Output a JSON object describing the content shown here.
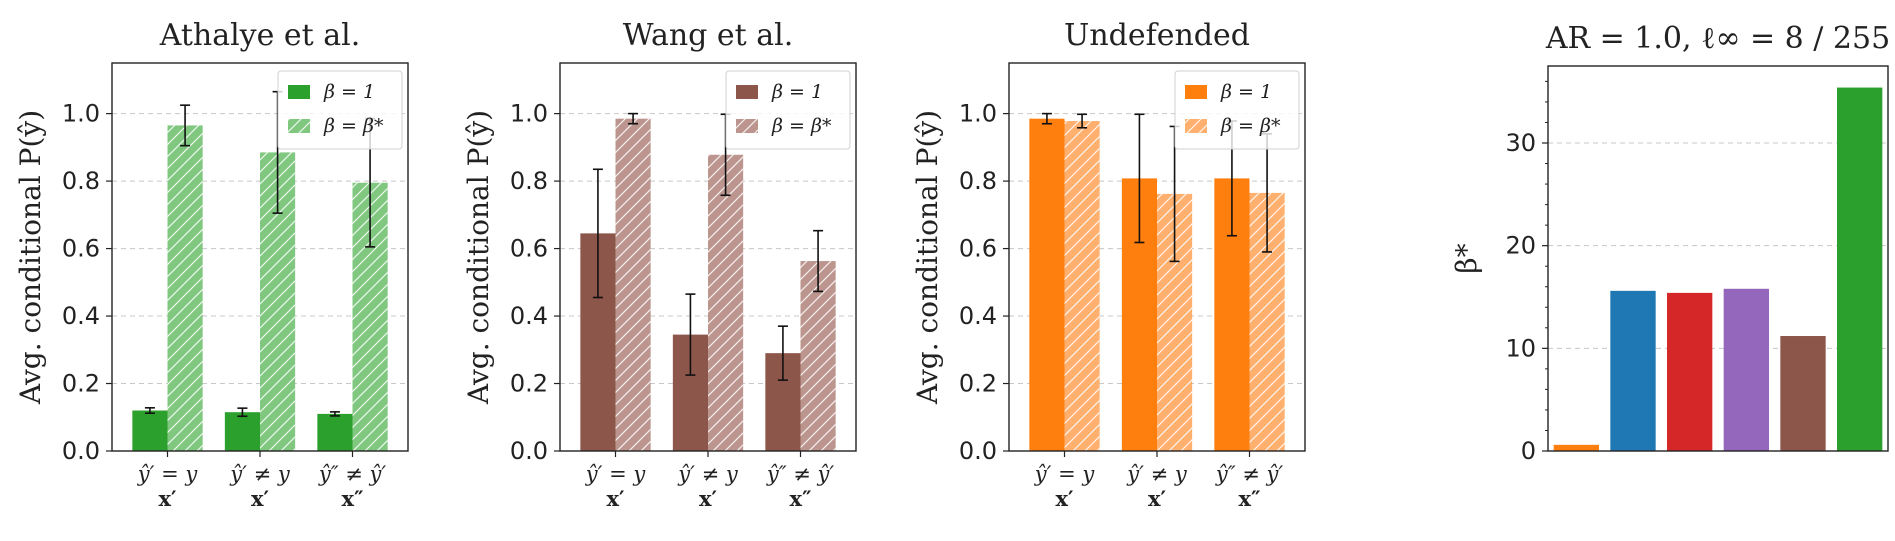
{
  "chart_data": [
    {
      "type": "bar",
      "title": "Athalye et al.",
      "ylabel": "Avg. conditional P(ŷ)",
      "ylim": [
        0,
        1.15
      ],
      "yticks": [
        "0.0",
        "0.2",
        "0.4",
        "0.6",
        "0.8",
        "1.0"
      ],
      "categories": [
        {
          "line1": "ŷ′ = y",
          "line2": "x′"
        },
        {
          "line1": "ŷ′ ≠ y",
          "line2": "x′"
        },
        {
          "line1": "ŷ″ ≠ ŷ′",
          "line2": "x″"
        }
      ],
      "legend_position": "top-right",
      "series": [
        {
          "name": "β = 1",
          "color": "#2ca02c",
          "hatch": false,
          "values": [
            0.12,
            0.115,
            0.11
          ],
          "err": [
            0.008,
            0.012,
            0.006
          ]
        },
        {
          "name": "β = β*",
          "color": "#80c780",
          "hatch": true,
          "values": [
            0.965,
            0.885,
            0.795
          ],
          "err": [
            0.06,
            0.18,
            0.19
          ]
        }
      ]
    },
    {
      "type": "bar",
      "title": "Wang et al.",
      "ylabel": "Avg. conditional P(ŷ)",
      "ylim": [
        0,
        1.15
      ],
      "yticks": [
        "0.0",
        "0.2",
        "0.4",
        "0.6",
        "0.8",
        "1.0"
      ],
      "categories": [
        {
          "line1": "ŷ′ = y",
          "line2": "x′"
        },
        {
          "line1": "ŷ′ ≠ y",
          "line2": "x′"
        },
        {
          "line1": "ŷ″ ≠ ŷ′",
          "line2": "x″"
        }
      ],
      "legend_position": "top-right",
      "series": [
        {
          "name": "β = 1",
          "color": "#8c564b",
          "hatch": false,
          "values": [
            0.645,
            0.345,
            0.29
          ],
          "err": [
            0.19,
            0.12,
            0.08
          ]
        },
        {
          "name": "β = β*",
          "color": "#bb958e",
          "hatch": true,
          "values": [
            0.985,
            0.878,
            0.563
          ],
          "err": [
            0.015,
            0.12,
            0.09
          ]
        }
      ]
    },
    {
      "type": "bar",
      "title": "Undefended",
      "ylabel": "Avg. conditional P(ŷ)",
      "ylim": [
        0,
        1.15
      ],
      "yticks": [
        "0.0",
        "0.2",
        "0.4",
        "0.6",
        "0.8",
        "1.0"
      ],
      "categories": [
        {
          "line1": "ŷ′ = y",
          "line2": "x′"
        },
        {
          "line1": "ŷ′ ≠ y",
          "line2": "x′"
        },
        {
          "line1": "ŷ″ ≠ ŷ′",
          "line2": "x″"
        }
      ],
      "legend_position": "top-right",
      "series": [
        {
          "name": "β = 1",
          "color": "#ff7f0e",
          "hatch": false,
          "values": [
            0.985,
            0.808,
            0.808
          ],
          "err": [
            0.015,
            0.19,
            0.17
          ]
        },
        {
          "name": "β = β*",
          "color": "#ffaf6e",
          "hatch": true,
          "values": [
            0.978,
            0.762,
            0.765
          ],
          "err": [
            0.02,
            0.2,
            0.175
          ]
        }
      ]
    },
    {
      "type": "bar",
      "title": "AR = 1.0, ℓ∞ = 8 / 255",
      "ylabel": "β*",
      "ylim": [
        0,
        37.5
      ],
      "yticks": [
        "0",
        "10",
        "20",
        "30"
      ],
      "ytick_values": [
        0,
        10,
        20,
        30
      ],
      "values": [
        0.6,
        15.6,
        15.4,
        15.8,
        11.2,
        35.4
      ],
      "colors": [
        "#ff7f0e",
        "#1f77b4",
        "#d62728",
        "#9467bd",
        "#8c564b",
        "#2ca02c"
      ]
    }
  ]
}
